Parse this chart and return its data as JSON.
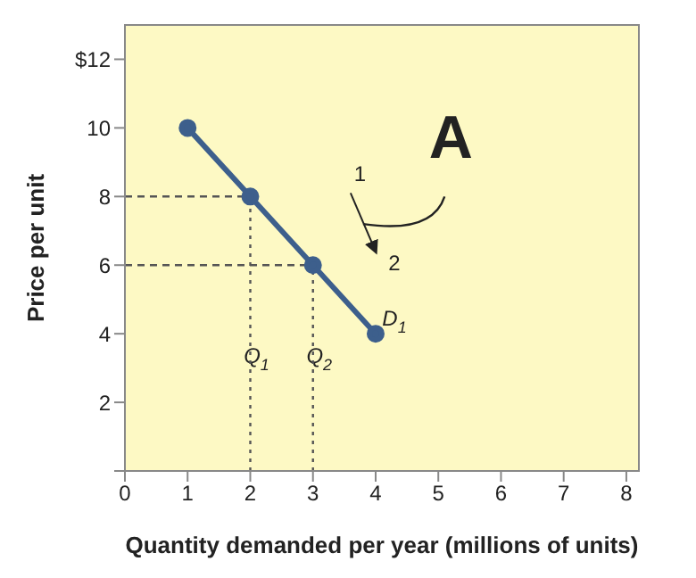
{
  "chart_data": {
    "type": "line",
    "xlabel": "Quantity demanded per year (millions of units)",
    "ylabel": "Price per unit",
    "xlim": [
      0,
      8.2
    ],
    "xticks": [
      0,
      1,
      2,
      3,
      4,
      5,
      6,
      7,
      8
    ],
    "ylim": [
      0,
      13
    ],
    "yticks": [
      {
        "value": 0,
        "label": null
      },
      2,
      4,
      6,
      8,
      10,
      {
        "value": 12,
        "label": "$12"
      }
    ],
    "series": [
      {
        "x": [
          1,
          2,
          3,
          4
        ],
        "values": [
          10,
          8,
          6,
          4
        ],
        "color": "#3d5f8c",
        "marker": "circle",
        "line_style": "solid"
      },
      {
        "x": [
          0,
          2
        ],
        "values": [
          8,
          8
        ],
        "color": "#555555",
        "marker": "none",
        "line_style": "dashed"
      },
      {
        "x": [
          2,
          2
        ],
        "values": [
          0,
          8
        ],
        "color": "#555555",
        "marker": "none",
        "line_style": "dotted"
      },
      {
        "x": [
          0,
          3
        ],
        "values": [
          6,
          6
        ],
        "color": "#555555",
        "marker": "none",
        "line_style": "dashed"
      },
      {
        "x": [
          3,
          3
        ],
        "values": [
          0,
          6
        ],
        "color": "#555555",
        "marker": "none",
        "line_style": "dotted"
      }
    ],
    "annotations": [
      {
        "text": "Q$_{1}$",
        "x": 2.1,
        "y": 3.3
      },
      {
        "text": "Q$_{2}$",
        "x": 3.1,
        "y": 3.3
      },
      "D$_{1}$",
      "1",
      "2",
      "A"
    ]
  }
}
